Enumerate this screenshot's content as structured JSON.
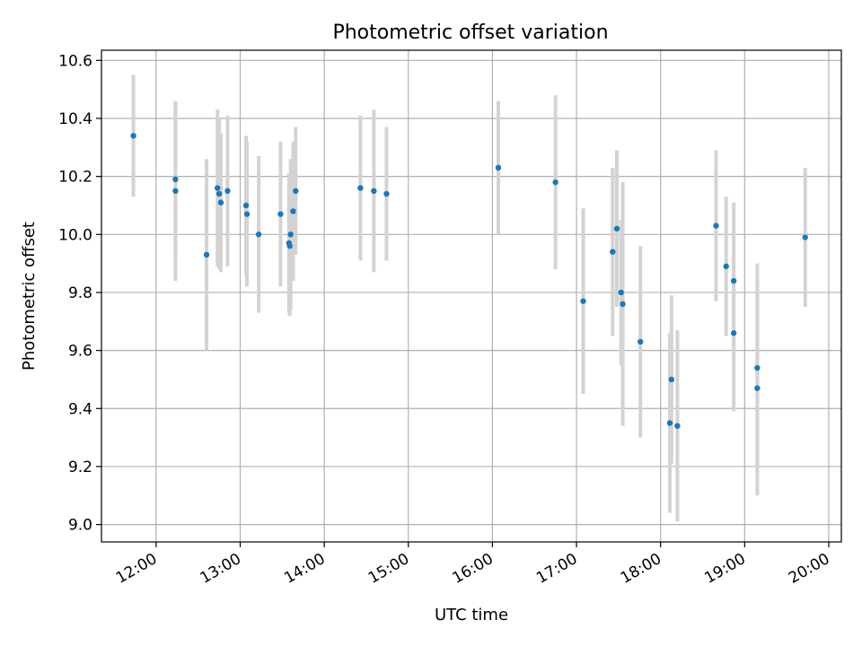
{
  "chart_data": {
    "type": "scatter",
    "title": "Photometric offset variation",
    "xlabel": "UTC time",
    "ylabel": "Photometric offset",
    "x_unit": "hours (UTC)",
    "xlim": [
      11.35,
      20.15
    ],
    "ylim": [
      8.94,
      10.635
    ],
    "grid": true,
    "x_ticks": [
      12,
      13,
      14,
      15,
      16,
      17,
      18,
      19,
      20
    ],
    "x_tick_labels": [
      "12:00",
      "13:00",
      "14:00",
      "15:00",
      "16:00",
      "17:00",
      "18:00",
      "19:00",
      "20:00"
    ],
    "y_ticks": [
      9.0,
      9.2,
      9.4,
      9.6,
      9.8,
      10.0,
      10.2,
      10.4,
      10.6
    ],
    "y_tick_labels": [
      "9.0",
      "9.2",
      "9.4",
      "9.6",
      "9.8",
      "10.0",
      "10.2",
      "10.4",
      "10.6"
    ],
    "marker_color": "#1f77b4",
    "errorbar_color": "#d3d3d3",
    "points": [
      {
        "x": 11.73,
        "y": 10.34,
        "err": 0.21
      },
      {
        "x": 12.23,
        "y": 10.19,
        "err": 0.27
      },
      {
        "x": 12.23,
        "y": 10.15,
        "err": 0.31
      },
      {
        "x": 12.6,
        "y": 9.93,
        "err": 0.33
      },
      {
        "x": 12.73,
        "y": 10.16,
        "err": 0.27
      },
      {
        "x": 12.75,
        "y": 10.14,
        "err": 0.26
      },
      {
        "x": 12.77,
        "y": 10.11,
        "err": 0.24
      },
      {
        "x": 12.85,
        "y": 10.15,
        "err": 0.26
      },
      {
        "x": 13.07,
        "y": 10.1,
        "err": 0.24
      },
      {
        "x": 13.08,
        "y": 10.07,
        "err": 0.25
      },
      {
        "x": 13.22,
        "y": 10.0,
        "err": 0.27
      },
      {
        "x": 13.48,
        "y": 10.07,
        "err": 0.25
      },
      {
        "x": 13.58,
        "y": 9.97,
        "err": 0.24
      },
      {
        "x": 13.59,
        "y": 9.96,
        "err": 0.24
      },
      {
        "x": 13.6,
        "y": 10.0,
        "err": 0.26
      },
      {
        "x": 13.63,
        "y": 10.08,
        "err": 0.24
      },
      {
        "x": 13.66,
        "y": 10.15,
        "err": 0.22
      },
      {
        "x": 14.43,
        "y": 10.16,
        "err": 0.25
      },
      {
        "x": 14.59,
        "y": 10.15,
        "err": 0.28
      },
      {
        "x": 14.74,
        "y": 10.14,
        "err": 0.23
      },
      {
        "x": 16.07,
        "y": 10.23,
        "err": 0.23
      },
      {
        "x": 16.75,
        "y": 10.18,
        "err": 0.3
      },
      {
        "x": 17.08,
        "y": 9.77,
        "err": 0.32
      },
      {
        "x": 17.43,
        "y": 9.94,
        "err": 0.29
      },
      {
        "x": 17.48,
        "y": 10.02,
        "err": 0.27
      },
      {
        "x": 17.53,
        "y": 9.8,
        "err": 0.25
      },
      {
        "x": 17.55,
        "y": 9.76,
        "err": 0.42
      },
      {
        "x": 17.76,
        "y": 9.63,
        "err": 0.33
      },
      {
        "x": 18.11,
        "y": 9.35,
        "err": 0.31
      },
      {
        "x": 18.13,
        "y": 9.5,
        "err": 0.29
      },
      {
        "x": 18.2,
        "y": 9.34,
        "err": 0.33
      },
      {
        "x": 18.66,
        "y": 10.03,
        "err": 0.26
      },
      {
        "x": 18.78,
        "y": 9.89,
        "err": 0.24
      },
      {
        "x": 18.87,
        "y": 9.84,
        "err": 0.27
      },
      {
        "x": 18.87,
        "y": 9.66,
        "err": 0.27
      },
      {
        "x": 19.15,
        "y": 9.54,
        "err": 0.36
      },
      {
        "x": 19.15,
        "y": 9.47,
        "err": 0.37
      },
      {
        "x": 19.72,
        "y": 9.99,
        "err": 0.24
      }
    ]
  }
}
